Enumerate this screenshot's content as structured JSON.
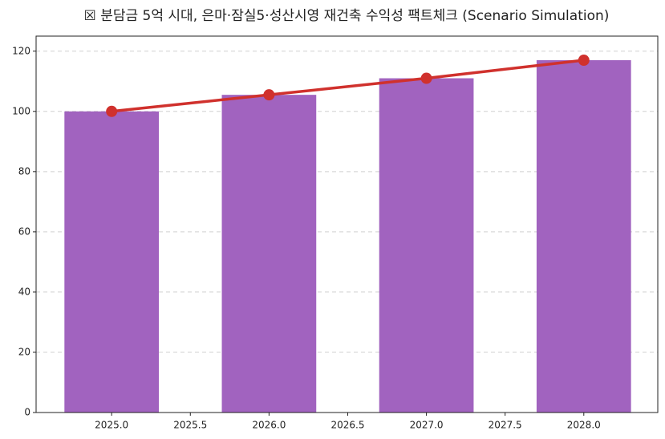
{
  "chart_data": {
    "type": "combo",
    "title": "☒ 분담금 5억 시대, 은마·잠실5·성산시영 재건축 수익성 팩트체크 (Scenario Simulation)",
    "x": [
      2025,
      2026,
      2027,
      2028
    ],
    "series": [
      {
        "type": "bar",
        "color": "#a163bf",
        "values": [
          100,
          105.5,
          111,
          117
        ]
      },
      {
        "type": "line",
        "color": "#d0312d",
        "values": [
          100,
          105.5,
          111,
          117
        ]
      }
    ],
    "xlim": [
      2024.52,
      2028.47
    ],
    "xticks": [
      {
        "value": 2025,
        "label": "2025.0"
      },
      {
        "value": 2025.5,
        "label": "2025.5"
      },
      {
        "value": 2026,
        "label": "2026.0"
      },
      {
        "value": 2026.5,
        "label": "2026.5"
      },
      {
        "value": 2027,
        "label": "2027.0"
      },
      {
        "value": 2027.5,
        "label": "2027.5"
      },
      {
        "value": 2028,
        "label": "2028.0"
      }
    ],
    "ylim": [
      0,
      125
    ],
    "yticks": [
      0,
      20,
      40,
      60,
      80,
      100,
      120
    ],
    "grid": true
  }
}
